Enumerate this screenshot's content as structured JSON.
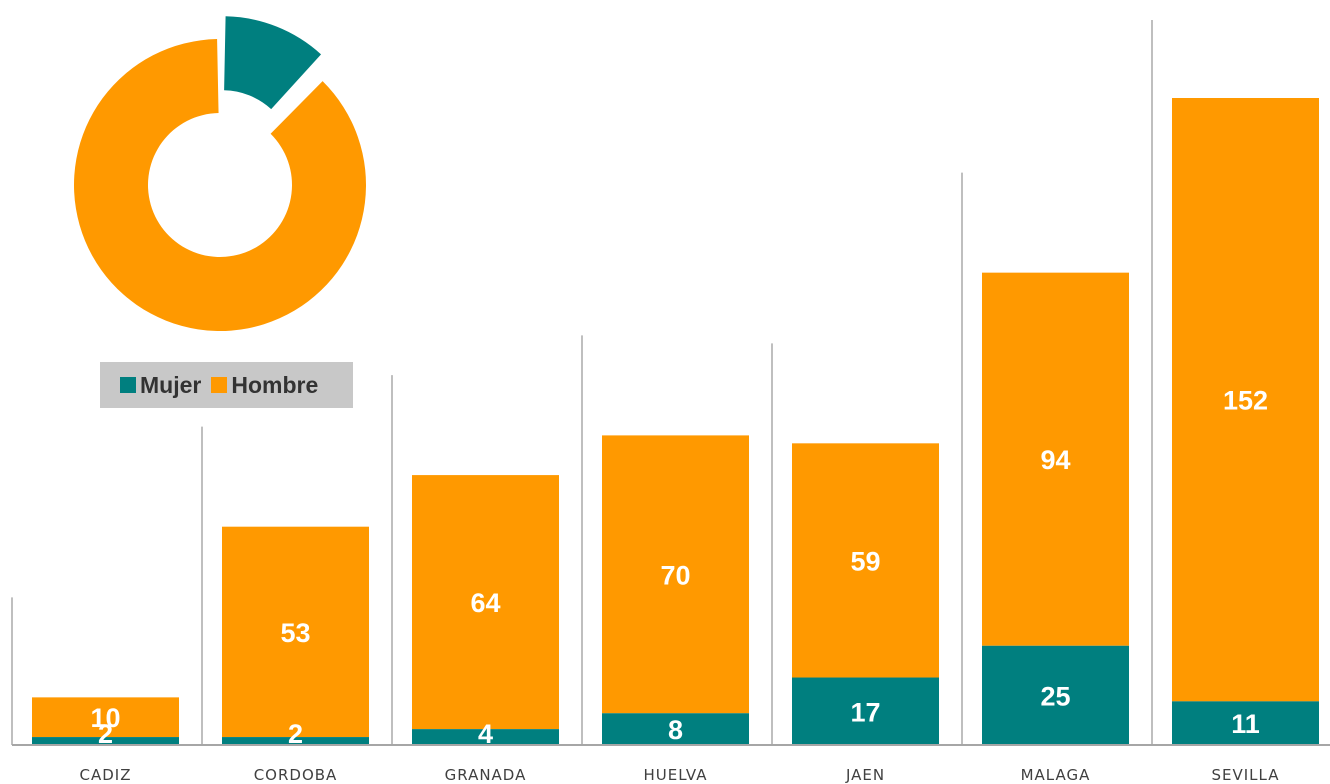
{
  "colors": {
    "mujer": "#007f7f",
    "hombre": "#ff9900",
    "separator": "#bfbfbf",
    "axis": "#a6a6a6",
    "legend_bg": "#c8c8c8"
  },
  "legend": {
    "mujer_label": "Mujer",
    "hombre_label": "Hombre"
  },
  "chart_data": [
    {
      "type": "bar",
      "stacked": true,
      "title": "",
      "xlabel": "",
      "ylabel": "",
      "categories": [
        "CADIZ",
        "CORDOBA",
        "GRANADA",
        "HUELVA",
        "JAEN",
        "MALAGA",
        "SEVILLA"
      ],
      "series": [
        {
          "name": "Mujer",
          "color": "#007f7f",
          "values": [
            2,
            2,
            4,
            8,
            17,
            25,
            11
          ]
        },
        {
          "name": "Hombre",
          "color": "#ff9900",
          "values": [
            10,
            53,
            64,
            70,
            59,
            94,
            152
          ]
        }
      ],
      "ylim": [
        0,
        163
      ],
      "data_labels": true,
      "grid": false,
      "legend_position": "top-left"
    },
    {
      "type": "pie",
      "donut": true,
      "exploded_slice": "Mujer",
      "slices": [
        {
          "name": "Mujer",
          "value": 69,
          "color": "#007f7f"
        },
        {
          "name": "Hombre",
          "value": 502,
          "color": "#ff9900"
        }
      ]
    }
  ]
}
